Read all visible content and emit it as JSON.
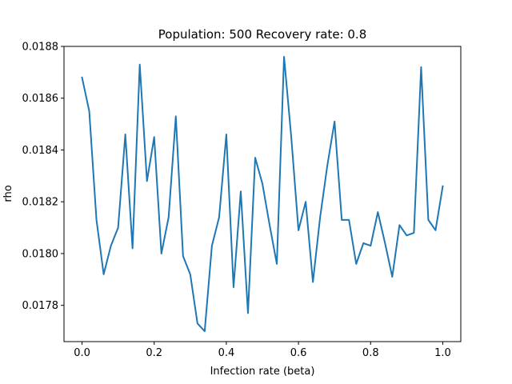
{
  "chart_data": {
    "type": "line",
    "title": "Population: 500 Recovery rate: 0.8",
    "xlabel": "Infection rate (beta)",
    "ylabel": "rho",
    "xlim": [
      -0.05,
      1.05
    ],
    "ylim": [
      0.01766,
      0.0188
    ],
    "xticks": [
      0.0,
      0.2,
      0.4,
      0.6,
      0.8,
      1.0
    ],
    "xtick_labels": [
      "0.0",
      "0.2",
      "0.4",
      "0.6",
      "0.8",
      "1.0"
    ],
    "yticks": [
      0.0178,
      0.018,
      0.0182,
      0.0184,
      0.0186,
      0.0188
    ],
    "ytick_labels": [
      "0.0178",
      "0.0180",
      "0.0182",
      "0.0184",
      "0.0186",
      "0.0188"
    ],
    "grid": false,
    "legend": "none",
    "series": [
      {
        "color": "#1f77b4",
        "x": [
          0.0,
          0.02,
          0.04,
          0.06,
          0.08,
          0.1,
          0.12,
          0.14,
          0.16,
          0.18,
          0.2,
          0.22,
          0.24,
          0.26,
          0.28,
          0.3,
          0.32,
          0.34,
          0.36,
          0.38,
          0.4,
          0.42,
          0.44,
          0.46,
          0.48,
          0.5,
          0.52,
          0.54,
          0.56,
          0.58,
          0.6,
          0.62,
          0.64,
          0.66,
          0.68,
          0.7,
          0.72,
          0.74,
          0.76,
          0.78,
          0.8,
          0.82,
          0.84,
          0.86,
          0.88,
          0.9,
          0.92,
          0.94,
          0.96,
          0.98,
          1.0
        ],
        "y": [
          0.01868,
          0.01855,
          0.01813,
          0.01792,
          0.01803,
          0.0181,
          0.01846,
          0.01802,
          0.01873,
          0.01828,
          0.01845,
          0.018,
          0.01814,
          0.01853,
          0.01799,
          0.01792,
          0.01773,
          0.0177,
          0.01803,
          0.01814,
          0.01846,
          0.01787,
          0.01824,
          0.01777,
          0.01837,
          0.01827,
          0.01811,
          0.01796,
          0.01876,
          0.01845,
          0.01809,
          0.0182,
          0.01789,
          0.01814,
          0.01834,
          0.01851,
          0.01813,
          0.01813,
          0.01796,
          0.01804,
          0.01803,
          0.01816,
          0.01804,
          0.01791,
          0.01811,
          0.01807,
          0.01808,
          0.01872,
          0.01813,
          0.01809,
          0.01826
        ]
      }
    ]
  }
}
